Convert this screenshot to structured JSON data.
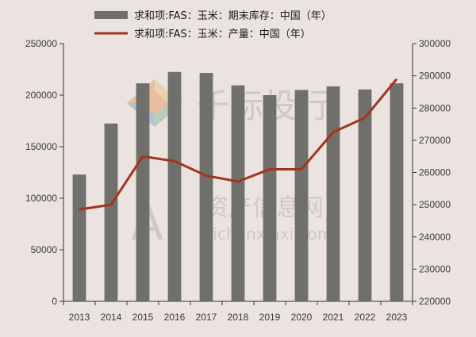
{
  "chart_data": {
    "type": "bar+line",
    "categories": [
      "2013",
      "2014",
      "2015",
      "2016",
      "2017",
      "2018",
      "2019",
      "2020",
      "2021",
      "2022",
      "2023"
    ],
    "series": [
      {
        "name": "求和项:FAS：玉米：期末库存：中国（年）",
        "type": "bar",
        "axis": "left",
        "color": "#6f706b",
        "values": [
          123000,
          172500,
          211500,
          222500,
          221500,
          209500,
          200000,
          205000,
          208500,
          205500,
          211500
        ]
      },
      {
        "name": "求和项:FAS：玉米：产量：中国（年）",
        "type": "line",
        "axis": "right",
        "color": "#a5321e",
        "values": [
          248500,
          250000,
          265000,
          263500,
          259000,
          257200,
          261000,
          261000,
          272500,
          277000,
          289000
        ]
      }
    ],
    "y_left": {
      "min": 0,
      "max": 250000,
      "step": 50000,
      "ticks": [
        "0",
        "50000",
        "100000",
        "150000",
        "200000",
        "250000"
      ]
    },
    "y_right": {
      "min": 220000,
      "max": 300000,
      "step": 10000,
      "ticks": [
        "220000",
        "230000",
        "240000",
        "250000",
        "260000",
        "270000",
        "280000",
        "290000",
        "300000"
      ]
    },
    "legend_position": "top-center",
    "grid": false
  },
  "watermark": {
    "line1": "千际投行",
    "line2": "资产信息网",
    "line3": "zichanxinxi.com",
    "logo_text": "AI"
  }
}
